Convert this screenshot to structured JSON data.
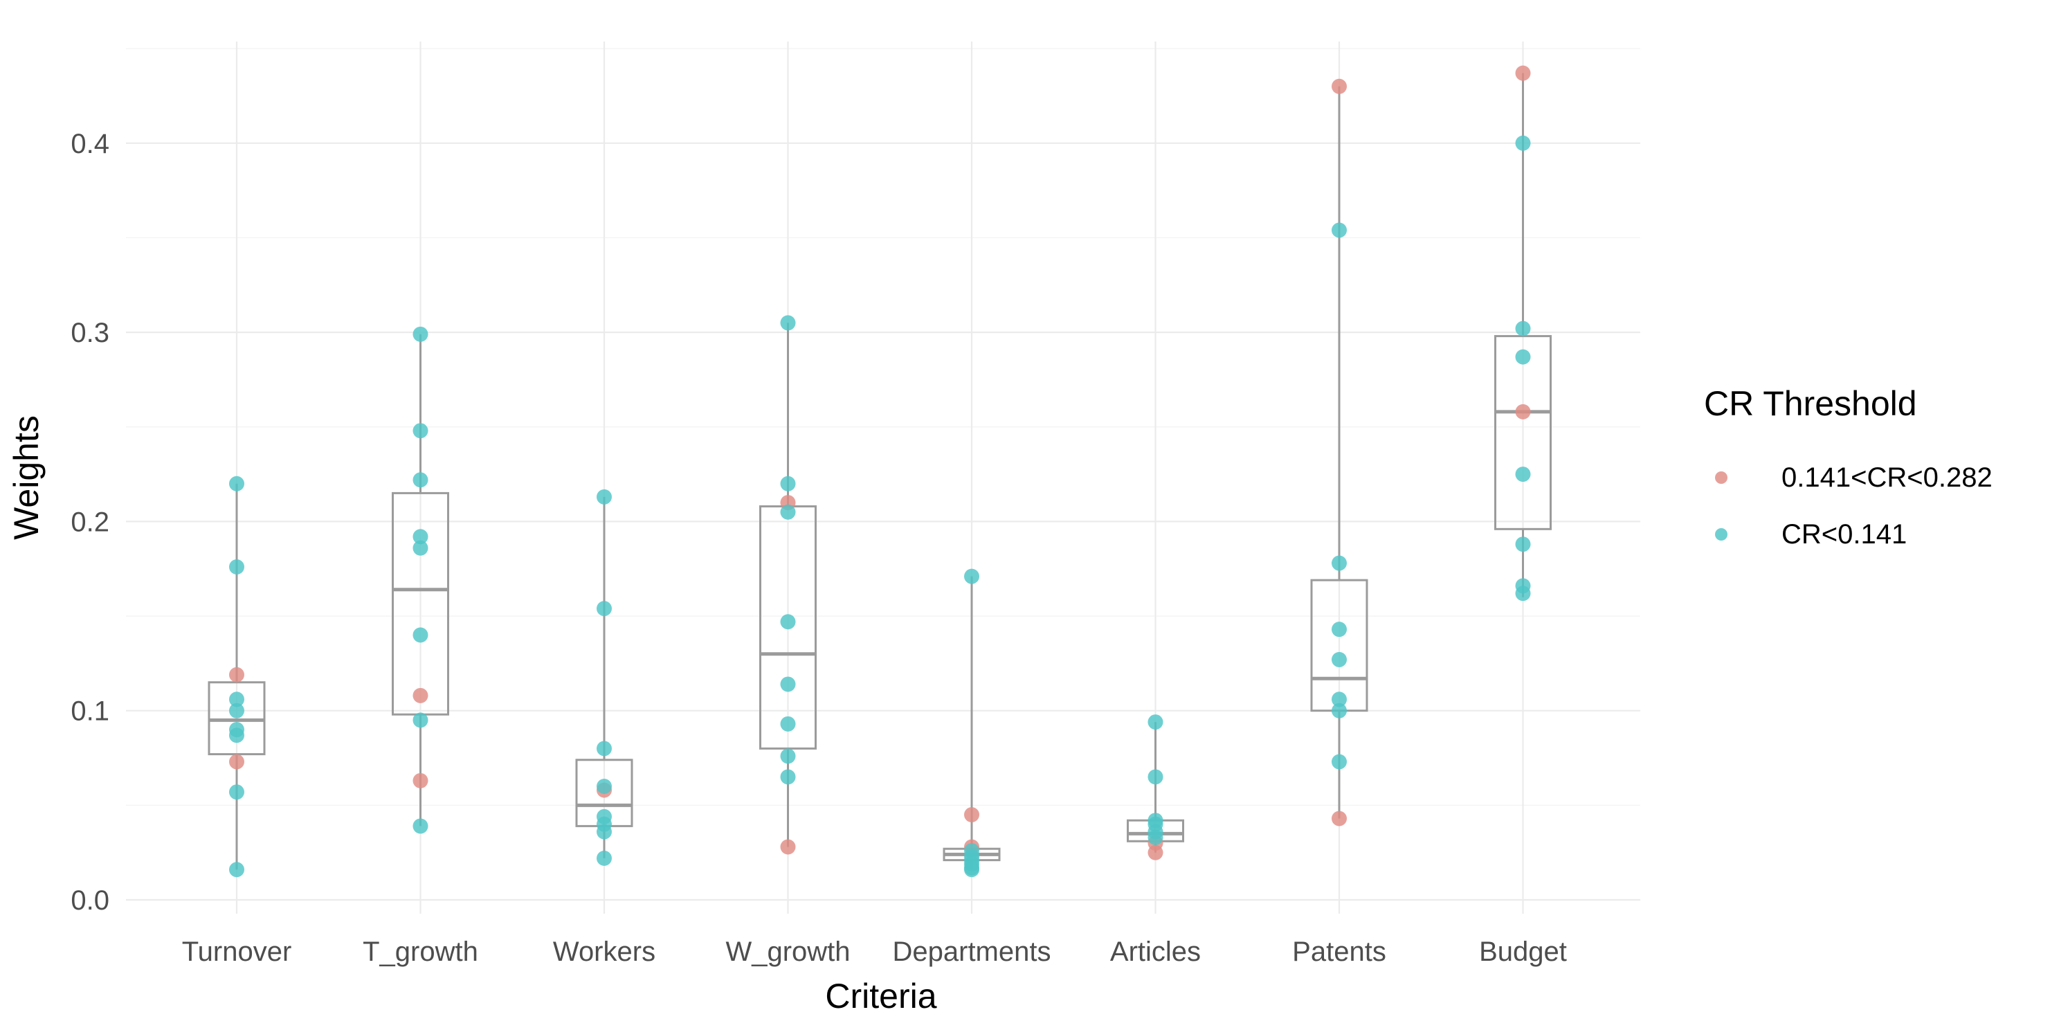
{
  "chart_data": {
    "type": "scatter",
    "subtype": "boxplot with jittered points",
    "title": "",
    "xlabel": "Criteria",
    "ylabel": "Weights",
    "ylim": [
      -0.012,
      0.45
    ],
    "yticks": [
      0.0,
      0.1,
      0.2,
      0.3,
      0.4
    ],
    "ytick_labels": [
      "0.0",
      "0.1",
      "0.2",
      "0.3",
      "0.4"
    ],
    "categories": [
      "Turnover",
      "T_growth",
      "Workers",
      "W_growth",
      "Departments",
      "Articles",
      "Patents",
      "Budget"
    ],
    "boxes": [
      {
        "category": "Turnover",
        "min": 0.016,
        "q1": 0.077,
        "median": 0.095,
        "q3": 0.115,
        "max": 0.22
      },
      {
        "category": "T_growth",
        "min": 0.039,
        "q1": 0.098,
        "median": 0.164,
        "q3": 0.215,
        "max": 0.299
      },
      {
        "category": "Workers",
        "min": 0.022,
        "q1": 0.039,
        "median": 0.05,
        "q3": 0.074,
        "max": 0.213
      },
      {
        "category": "W_growth",
        "min": 0.028,
        "q1": 0.08,
        "median": 0.13,
        "q3": 0.208,
        "max": 0.305
      },
      {
        "category": "Departments",
        "min": 0.016,
        "q1": 0.021,
        "median": 0.024,
        "q3": 0.027,
        "max": 0.171
      },
      {
        "category": "Articles",
        "min": 0.025,
        "q1": 0.031,
        "median": 0.035,
        "q3": 0.042,
        "max": 0.094
      },
      {
        "category": "Patents",
        "min": 0.043,
        "q1": 0.1,
        "median": 0.117,
        "q3": 0.169,
        "max": 0.43
      },
      {
        "category": "Budget",
        "min": 0.16,
        "q1": 0.196,
        "median": 0.258,
        "q3": 0.298,
        "max": 0.437
      }
    ],
    "series": [
      {
        "name": "0.141<CR<0.282",
        "color": "#E08B84",
        "points": [
          {
            "category": "Turnover",
            "y": 0.119
          },
          {
            "category": "Turnover",
            "y": 0.073
          },
          {
            "category": "T_growth",
            "y": 0.108
          },
          {
            "category": "T_growth",
            "y": 0.063
          },
          {
            "category": "Workers",
            "y": 0.058
          },
          {
            "category": "W_growth",
            "y": 0.21
          },
          {
            "category": "W_growth",
            "y": 0.028
          },
          {
            "category": "Departments",
            "y": 0.045
          },
          {
            "category": "Departments",
            "y": 0.028
          },
          {
            "category": "Articles",
            "y": 0.025
          },
          {
            "category": "Articles",
            "y": 0.03
          },
          {
            "category": "Patents",
            "y": 0.43
          },
          {
            "category": "Patents",
            "y": 0.043
          },
          {
            "category": "Budget",
            "y": 0.437
          },
          {
            "category": "Budget",
            "y": 0.258
          }
        ]
      },
      {
        "name": "CR<0.141",
        "color": "#4EC5C7",
        "points": [
          {
            "category": "Turnover",
            "y": 0.22
          },
          {
            "category": "Turnover",
            "y": 0.176
          },
          {
            "category": "Turnover",
            "y": 0.106
          },
          {
            "category": "Turnover",
            "y": 0.1
          },
          {
            "category": "Turnover",
            "y": 0.09
          },
          {
            "category": "Turnover",
            "y": 0.087
          },
          {
            "category": "Turnover",
            "y": 0.057
          },
          {
            "category": "Turnover",
            "y": 0.016
          },
          {
            "category": "T_growth",
            "y": 0.299
          },
          {
            "category": "T_growth",
            "y": 0.248
          },
          {
            "category": "T_growth",
            "y": 0.222
          },
          {
            "category": "T_growth",
            "y": 0.192
          },
          {
            "category": "T_growth",
            "y": 0.186
          },
          {
            "category": "T_growth",
            "y": 0.14
          },
          {
            "category": "T_growth",
            "y": 0.095
          },
          {
            "category": "T_growth",
            "y": 0.039
          },
          {
            "category": "Workers",
            "y": 0.213
          },
          {
            "category": "Workers",
            "y": 0.154
          },
          {
            "category": "Workers",
            "y": 0.08
          },
          {
            "category": "Workers",
            "y": 0.06
          },
          {
            "category": "Workers",
            "y": 0.044
          },
          {
            "category": "Workers",
            "y": 0.04
          },
          {
            "category": "Workers",
            "y": 0.036
          },
          {
            "category": "Workers",
            "y": 0.022
          },
          {
            "category": "W_growth",
            "y": 0.305
          },
          {
            "category": "W_growth",
            "y": 0.22
          },
          {
            "category": "W_growth",
            "y": 0.205
          },
          {
            "category": "W_growth",
            "y": 0.147
          },
          {
            "category": "W_growth",
            "y": 0.114
          },
          {
            "category": "W_growth",
            "y": 0.093
          },
          {
            "category": "W_growth",
            "y": 0.076
          },
          {
            "category": "W_growth",
            "y": 0.065
          },
          {
            "category": "Departments",
            "y": 0.171
          },
          {
            "category": "Departments",
            "y": 0.026
          },
          {
            "category": "Departments",
            "y": 0.023
          },
          {
            "category": "Departments",
            "y": 0.021
          },
          {
            "category": "Departments",
            "y": 0.019
          },
          {
            "category": "Departments",
            "y": 0.017
          },
          {
            "category": "Departments",
            "y": 0.016
          },
          {
            "category": "Articles",
            "y": 0.094
          },
          {
            "category": "Articles",
            "y": 0.065
          },
          {
            "category": "Articles",
            "y": 0.042
          },
          {
            "category": "Articles",
            "y": 0.04
          },
          {
            "category": "Articles",
            "y": 0.036
          },
          {
            "category": "Articles",
            "y": 0.033
          },
          {
            "category": "Patents",
            "y": 0.354
          },
          {
            "category": "Patents",
            "y": 0.178
          },
          {
            "category": "Patents",
            "y": 0.143
          },
          {
            "category": "Patents",
            "y": 0.127
          },
          {
            "category": "Patents",
            "y": 0.106
          },
          {
            "category": "Patents",
            "y": 0.1
          },
          {
            "category": "Patents",
            "y": 0.073
          },
          {
            "category": "Budget",
            "y": 0.4
          },
          {
            "category": "Budget",
            "y": 0.302
          },
          {
            "category": "Budget",
            "y": 0.287
          },
          {
            "category": "Budget",
            "y": 0.225
          },
          {
            "category": "Budget",
            "y": 0.188
          },
          {
            "category": "Budget",
            "y": 0.166
          },
          {
            "category": "Budget",
            "y": 0.162
          }
        ]
      }
    ],
    "legend": {
      "title": "CR Threshold",
      "position": "right",
      "entries": [
        "0.141<CR<0.282",
        "CR<0.141"
      ]
    },
    "grid": true
  }
}
